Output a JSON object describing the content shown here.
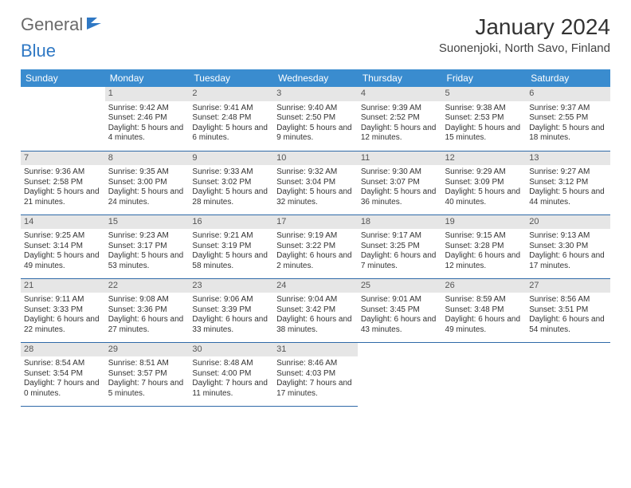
{
  "logo": {
    "text1": "General",
    "text2": "Blue",
    "icon_color": "#2f78c4"
  },
  "title": "January 2024",
  "location": "Suonenjoki, North Savo, Finland",
  "weekday_header_bg": "#3a8ccf",
  "daynum_bg": "#e6e6e6",
  "row_border_color": "#2f6aa8",
  "weekdays": [
    "Sunday",
    "Monday",
    "Tuesday",
    "Wednesday",
    "Thursday",
    "Friday",
    "Saturday"
  ],
  "start_offset": 1,
  "days": [
    {
      "n": 1,
      "sunrise": "9:42 AM",
      "sunset": "2:46 PM",
      "day_h": 5,
      "day_m": 4
    },
    {
      "n": 2,
      "sunrise": "9:41 AM",
      "sunset": "2:48 PM",
      "day_h": 5,
      "day_m": 6
    },
    {
      "n": 3,
      "sunrise": "9:40 AM",
      "sunset": "2:50 PM",
      "day_h": 5,
      "day_m": 9
    },
    {
      "n": 4,
      "sunrise": "9:39 AM",
      "sunset": "2:52 PM",
      "day_h": 5,
      "day_m": 12
    },
    {
      "n": 5,
      "sunrise": "9:38 AM",
      "sunset": "2:53 PM",
      "day_h": 5,
      "day_m": 15
    },
    {
      "n": 6,
      "sunrise": "9:37 AM",
      "sunset": "2:55 PM",
      "day_h": 5,
      "day_m": 18
    },
    {
      "n": 7,
      "sunrise": "9:36 AM",
      "sunset": "2:58 PM",
      "day_h": 5,
      "day_m": 21
    },
    {
      "n": 8,
      "sunrise": "9:35 AM",
      "sunset": "3:00 PM",
      "day_h": 5,
      "day_m": 24
    },
    {
      "n": 9,
      "sunrise": "9:33 AM",
      "sunset": "3:02 PM",
      "day_h": 5,
      "day_m": 28
    },
    {
      "n": 10,
      "sunrise": "9:32 AM",
      "sunset": "3:04 PM",
      "day_h": 5,
      "day_m": 32
    },
    {
      "n": 11,
      "sunrise": "9:30 AM",
      "sunset": "3:07 PM",
      "day_h": 5,
      "day_m": 36
    },
    {
      "n": 12,
      "sunrise": "9:29 AM",
      "sunset": "3:09 PM",
      "day_h": 5,
      "day_m": 40
    },
    {
      "n": 13,
      "sunrise": "9:27 AM",
      "sunset": "3:12 PM",
      "day_h": 5,
      "day_m": 44
    },
    {
      "n": 14,
      "sunrise": "9:25 AM",
      "sunset": "3:14 PM",
      "day_h": 5,
      "day_m": 49
    },
    {
      "n": 15,
      "sunrise": "9:23 AM",
      "sunset": "3:17 PM",
      "day_h": 5,
      "day_m": 53
    },
    {
      "n": 16,
      "sunrise": "9:21 AM",
      "sunset": "3:19 PM",
      "day_h": 5,
      "day_m": 58
    },
    {
      "n": 17,
      "sunrise": "9:19 AM",
      "sunset": "3:22 PM",
      "day_h": 6,
      "day_m": 2
    },
    {
      "n": 18,
      "sunrise": "9:17 AM",
      "sunset": "3:25 PM",
      "day_h": 6,
      "day_m": 7
    },
    {
      "n": 19,
      "sunrise": "9:15 AM",
      "sunset": "3:28 PM",
      "day_h": 6,
      "day_m": 12
    },
    {
      "n": 20,
      "sunrise": "9:13 AM",
      "sunset": "3:30 PM",
      "day_h": 6,
      "day_m": 17
    },
    {
      "n": 21,
      "sunrise": "9:11 AM",
      "sunset": "3:33 PM",
      "day_h": 6,
      "day_m": 22
    },
    {
      "n": 22,
      "sunrise": "9:08 AM",
      "sunset": "3:36 PM",
      "day_h": 6,
      "day_m": 27
    },
    {
      "n": 23,
      "sunrise": "9:06 AM",
      "sunset": "3:39 PM",
      "day_h": 6,
      "day_m": 33
    },
    {
      "n": 24,
      "sunrise": "9:04 AM",
      "sunset": "3:42 PM",
      "day_h": 6,
      "day_m": 38
    },
    {
      "n": 25,
      "sunrise": "9:01 AM",
      "sunset": "3:45 PM",
      "day_h": 6,
      "day_m": 43
    },
    {
      "n": 26,
      "sunrise": "8:59 AM",
      "sunset": "3:48 PM",
      "day_h": 6,
      "day_m": 49
    },
    {
      "n": 27,
      "sunrise": "8:56 AM",
      "sunset": "3:51 PM",
      "day_h": 6,
      "day_m": 54
    },
    {
      "n": 28,
      "sunrise": "8:54 AM",
      "sunset": "3:54 PM",
      "day_h": 7,
      "day_m": 0
    },
    {
      "n": 29,
      "sunrise": "8:51 AM",
      "sunset": "3:57 PM",
      "day_h": 7,
      "day_m": 5
    },
    {
      "n": 30,
      "sunrise": "8:48 AM",
      "sunset": "4:00 PM",
      "day_h": 7,
      "day_m": 11
    },
    {
      "n": 31,
      "sunrise": "8:46 AM",
      "sunset": "4:03 PM",
      "day_h": 7,
      "day_m": 17
    }
  ],
  "labels": {
    "sunrise": "Sunrise:",
    "sunset": "Sunset:",
    "daylight": "Daylight:",
    "hours": "hours",
    "and": "and",
    "minutes": "minutes."
  }
}
